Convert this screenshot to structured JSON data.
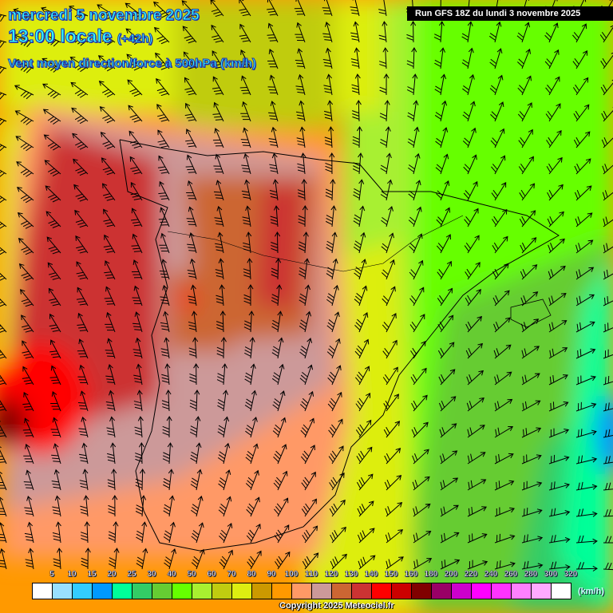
{
  "header": {
    "date": "mercredi 5 novembre 2025",
    "time": "13:00 locale",
    "lead": "(+42h)",
    "parameter": "Vent moyen direction/force à 500hPa (km/h)"
  },
  "run_label": "Run GFS 18Z du lundi 3 novembre 2025",
  "legend": {
    "labels": [
      "5",
      "10",
      "15",
      "20",
      "25",
      "30",
      "40",
      "50",
      "60",
      "70",
      "80",
      "90",
      "100",
      "110",
      "120",
      "130",
      "140",
      "150",
      "160",
      "180",
      "200",
      "220",
      "240",
      "260",
      "280",
      "300",
      "320"
    ],
    "colors": [
      "#ffffff",
      "#99e0ff",
      "#33ccff",
      "#0099ff",
      "#00ff99",
      "#33cc66",
      "#66cc33",
      "#66ff00",
      "#a8f030",
      "#c0cc10",
      "#ddee11",
      "#cc9900",
      "#ff9900",
      "#ff9966",
      "#cc9999",
      "#cc6633",
      "#cc3333",
      "#ff0000",
      "#cc0000",
      "#800000",
      "#990066",
      "#cc00cc",
      "#ff00ff",
      "#ff33ff",
      "#ff80ff",
      "#ffaaff",
      "#ffffff"
    ],
    "unit": "(km/h)"
  },
  "copyright": "Copyright 2025 Meteociel.fr"
}
